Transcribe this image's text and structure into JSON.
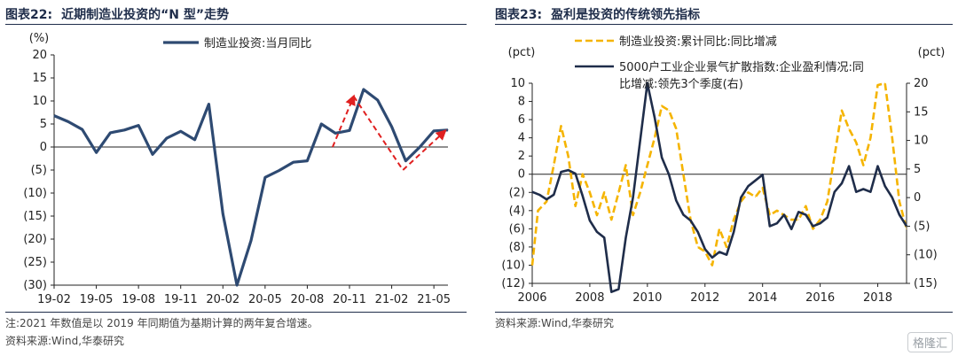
{
  "left": {
    "fig_num": "图表22:",
    "fig_title": "近期制造业投资的“N 型”走势",
    "note1": "注:2021 年数值是以 2019 年同期值为基期计算的两年复合增速。",
    "note2": "资料来源:Wind,华泰研究"
  },
  "right": {
    "fig_num": "图表23:",
    "fig_title": "盈利是投资的传统领先指标",
    "note1": "资料来源:Wind,华泰研究"
  },
  "watermark": "格隆汇",
  "chart_data": [
    {
      "type": "line",
      "yunit": "(%)",
      "ylim": [
        -30,
        20
      ],
      "yticks": [
        20,
        15,
        10,
        5,
        0,
        -5,
        -10,
        -15,
        -20,
        -25,
        -30
      ],
      "ytick_labels": [
        "20",
        "15",
        "10",
        "5",
        "0",
        "(5)",
        "(10)",
        "(15)",
        "(20)",
        "(25)",
        "(30)"
      ],
      "xtick_labels": [
        "19-02",
        "19-05",
        "19-08",
        "19-11",
        "20-02",
        "20-05",
        "20-08",
        "20-11",
        "21-02",
        "21-05"
      ],
      "series": [
        {
          "name": "制造业投资:当月同比",
          "color": "#2e4a72",
          "values": [
            6.8,
            5.5,
            3.8,
            -1.2,
            3.1,
            3.7,
            4.7,
            -1.6,
            1.9,
            3.4,
            1.6,
            9.3,
            -14.5,
            -30,
            -20.3,
            -6.6,
            -5.1,
            -3.3,
            -3.0,
            5.0,
            3.0,
            3.6,
            12.5,
            10.2,
            4.4,
            -3.0,
            0.0,
            3.5,
            3.7
          ]
        }
      ],
      "annotations": [
        {
          "type": "arrow",
          "from": [
            19.8,
            0
          ],
          "to": [
            21.3,
            11
          ],
          "color": "#e02020",
          "style": "dashed"
        },
        {
          "type": "dashed-line",
          "from": [
            21.3,
            11
          ],
          "to": [
            24.8,
            -5
          ],
          "color": "#e02020"
        },
        {
          "type": "arrow",
          "from": [
            24.8,
            -5
          ],
          "to": [
            27.8,
            3.5
          ],
          "color": "#e02020",
          "style": "dashed"
        }
      ]
    },
    {
      "type": "line",
      "left_unit": "(pct)",
      "right_unit": "(pct)",
      "ylim_left": [
        -12,
        10
      ],
      "ylim_right": [
        -15,
        20
      ],
      "left_ticks": [
        10,
        8,
        6,
        4,
        2,
        0,
        -2,
        -4,
        -6,
        -8,
        -10,
        -12
      ],
      "left_tick_labels": [
        "10",
        "8",
        "6",
        "4",
        "2",
        "0",
        "(2)",
        "(4)",
        "(6)",
        "(8)",
        "(10)",
        "(12)"
      ],
      "right_ticks": [
        20,
        15,
        10,
        5,
        0,
        -5,
        -10,
        -15
      ],
      "right_tick_labels": [
        "20",
        "15",
        "10",
        "5",
        "0",
        "(5)",
        "(10)",
        "(15)"
      ],
      "xlim": [
        2006,
        2019
      ],
      "xtick_values": [
        2006,
        2008,
        2010,
        2012,
        2014,
        2016,
        2018
      ],
      "xtick_labels": [
        "2006",
        "2008",
        "2010",
        "2012",
        "2014",
        "2016",
        "2018"
      ],
      "series": [
        {
          "name": "制造业投资:累计同比:同比增减",
          "axis": "left",
          "color": "#f5b400",
          "style": "dashed",
          "x": [
            2006.0,
            2006.2,
            2006.5,
            2006.75,
            2007.0,
            2007.25,
            2007.5,
            2007.75,
            2008.0,
            2008.25,
            2008.5,
            2008.75,
            2009.0,
            2009.25,
            2009.5,
            2009.75,
            2010.0,
            2010.25,
            2010.5,
            2010.75,
            2011.0,
            2011.25,
            2011.5,
            2011.75,
            2012.0,
            2012.25,
            2012.5,
            2012.75,
            2013.0,
            2013.25,
            2013.5,
            2013.75,
            2014.0,
            2014.25,
            2014.5,
            2014.75,
            2015.0,
            2015.25,
            2015.5,
            2015.75,
            2016.0,
            2016.25,
            2016.5,
            2016.75,
            2017.0,
            2017.25,
            2017.5,
            2017.75,
            2018.0,
            2018.25,
            2018.5,
            2018.75,
            2019.0
          ],
          "values": [
            -10,
            -4,
            -3,
            1,
            5.3,
            2,
            -3.5,
            0,
            -2,
            -4.5,
            -2,
            -5,
            -2,
            1,
            -4.5,
            -2,
            1,
            4,
            7.5,
            7,
            5,
            0,
            -5,
            -8,
            -8.5,
            -10,
            -6,
            -8,
            -5,
            -3,
            -2,
            -2.5,
            -1.5,
            -4.5,
            -4,
            -4.5,
            -5,
            -5,
            -3.5,
            -6,
            -5,
            -3,
            2,
            7,
            5,
            3.5,
            1,
            4,
            9.8,
            10,
            4,
            -3,
            -6
          ]
        },
        {
          "name": "5000户工业企业景气扩散指数:企业盈利情况:同比增减:领先3个季度(右)",
          "axis": "right",
          "color": "#1f2d4a",
          "style": "solid",
          "x": [
            2006.0,
            2006.25,
            2006.5,
            2006.75,
            2007.0,
            2007.25,
            2007.5,
            2007.75,
            2008.0,
            2008.25,
            2008.5,
            2008.75,
            2009.0,
            2009.25,
            2009.5,
            2009.75,
            2010.0,
            2010.25,
            2010.5,
            2010.75,
            2011.0,
            2011.25,
            2011.5,
            2011.75,
            2012.0,
            2012.25,
            2012.5,
            2012.75,
            2013.0,
            2013.25,
            2013.5,
            2013.75,
            2014.0,
            2014.25,
            2014.5,
            2014.75,
            2015.0,
            2015.25,
            2015.5,
            2015.75,
            2016.0,
            2016.25,
            2016.5,
            2016.75,
            2017.0,
            2017.25,
            2017.5,
            2017.75,
            2018.0,
            2018.25,
            2018.5,
            2018.75,
            2019.0
          ],
          "values": [
            1,
            0.5,
            -0.3,
            0.5,
            4.5,
            4.8,
            4.2,
            0.3,
            -4,
            -6,
            -7,
            -16.5,
            -16,
            -7,
            0,
            10,
            20,
            14,
            7,
            4,
            -0.5,
            -3,
            -4,
            -6,
            -9,
            -10.5,
            -9.5,
            -10,
            -6,
            0,
            2,
            3,
            4,
            -5,
            -4.5,
            -3,
            -5.5,
            -2.5,
            -3,
            -5,
            -4.5,
            -3.5,
            1,
            2.5,
            5.5,
            1,
            1.5,
            1,
            5.5,
            2,
            0,
            -3,
            -5
          ]
        }
      ]
    }
  ]
}
